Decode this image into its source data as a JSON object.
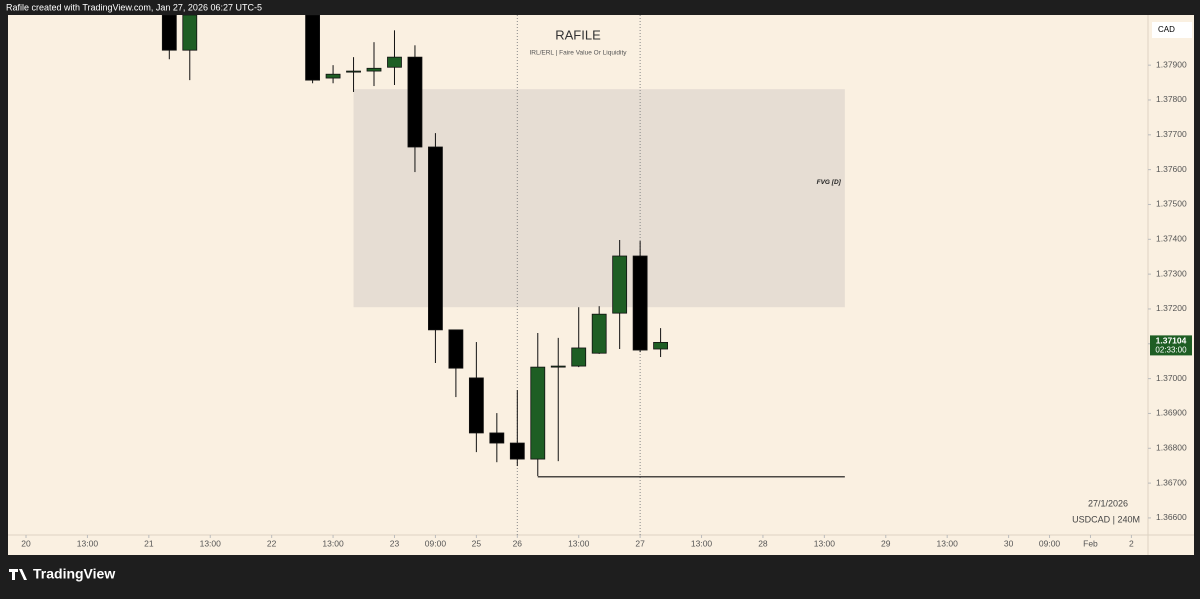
{
  "header": "Rafile created with TradingView.com, Jan 27, 2026 06:27 UTC-5",
  "footer": "TradingView",
  "chart_data": {
    "type": "candlestick",
    "title": "RAFILE",
    "subtitle": "IRL/ERL | Faire Value Or Liquidity",
    "currency": "CAD",
    "date_label": "27/1/2026",
    "symbol_label": "USDCAD | 240M",
    "countdown": "02:33:00",
    "up_color": "#1e5e24",
    "down_color": "#000000",
    "x": [
      7,
      8,
      14,
      15,
      16,
      17,
      18,
      19,
      20,
      21,
      22,
      23,
      24,
      25,
      26,
      27,
      28,
      29,
      30,
      31
    ],
    "open": [
      1.38044,
      1.37943,
      1.38044,
      1.37863,
      1.3788,
      1.37883,
      1.37894,
      1.37923,
      1.37665,
      1.3714,
      1.37002,
      1.36844,
      1.36815,
      1.36769,
      1.37033,
      1.37036,
      1.37073,
      1.37188,
      1.37352,
      1.37085
    ],
    "high": [
      1.38058,
      1.38058,
      1.38058,
      1.379,
      1.37923,
      1.37966,
      1.38,
      1.37957,
      1.37705,
      1.3714,
      1.37105,
      1.36901,
      1.36967,
      1.37131,
      1.37117,
      1.37205,
      1.37208,
      1.37398,
      1.37395,
      1.37145
    ],
    "low": [
      1.37917,
      1.37857,
      1.37848,
      1.37848,
      1.37823,
      1.3784,
      1.37843,
      1.37593,
      1.37045,
      1.36947,
      1.36789,
      1.3676,
      1.36749,
      1.3672,
      1.36763,
      1.37033,
      1.37071,
      1.37085,
      1.37076,
      1.37062
    ],
    "close": [
      1.37943,
      1.38044,
      1.37857,
      1.37874,
      1.37883,
      1.37891,
      1.37923,
      1.37665,
      1.3714,
      1.3703,
      1.36844,
      1.36815,
      1.36769,
      1.37033,
      1.37036,
      1.37088,
      1.37185,
      1.37352,
      1.37082,
      1.37104
    ],
    "zone": {
      "label": "FVG [D]",
      "top": 1.37831,
      "bottom": 1.37205,
      "x_start": 16,
      "x_end": 40,
      "color": "#e6ddd3"
    },
    "level": {
      "price": 1.36718,
      "x_start": 25,
      "x_end": 40
    },
    "vlines": [
      24,
      30
    ],
    "xlim": [
      -0.88,
      54.81
    ],
    "ylim": [
      1.36551,
      1.38044
    ],
    "xticks": [
      {
        "value": 0,
        "label": "20"
      },
      {
        "value": 3,
        "label": "13:00"
      },
      {
        "value": 6,
        "label": "21"
      },
      {
        "value": 9,
        "label": "13:00"
      },
      {
        "value": 12,
        "label": "22"
      },
      {
        "value": 15,
        "label": "13:00"
      },
      {
        "value": 18,
        "label": "23"
      },
      {
        "value": 20,
        "label": "09:00"
      },
      {
        "value": 22,
        "label": "25"
      },
      {
        "value": 24,
        "label": "26"
      },
      {
        "value": 27,
        "label": "13:00"
      },
      {
        "value": 30,
        "label": "27"
      },
      {
        "value": 33,
        "label": "13:00"
      },
      {
        "value": 36,
        "label": "28"
      },
      {
        "value": 39,
        "label": "13:00"
      },
      {
        "value": 42,
        "label": "29"
      },
      {
        "value": 45,
        "label": "13:00"
      },
      {
        "value": 48,
        "label": "30"
      },
      {
        "value": 50,
        "label": "09:00"
      },
      {
        "value": 52,
        "label": "Feb"
      },
      {
        "value": 54,
        "label": "2"
      }
    ],
    "yticks": [
      {
        "value": 1.366,
        "label": "1.36600"
      },
      {
        "value": 1.367,
        "label": "1.36700"
      },
      {
        "value": 1.368,
        "label": "1.36800"
      },
      {
        "value": 1.369,
        "label": "1.36900"
      },
      {
        "value": 1.37,
        "label": "1.37000"
      },
      {
        "value": 1.371,
        "label": "1.37100"
      },
      {
        "value": 1.372,
        "label": "1.37200"
      },
      {
        "value": 1.373,
        "label": "1.37300"
      },
      {
        "value": 1.374,
        "label": "1.37400"
      },
      {
        "value": 1.375,
        "label": "1.37500"
      },
      {
        "value": 1.376,
        "label": "1.37600"
      },
      {
        "value": 1.377,
        "label": "1.37700"
      },
      {
        "value": 1.378,
        "label": "1.37800"
      },
      {
        "value": 1.379,
        "label": "1.37900"
      }
    ]
  }
}
